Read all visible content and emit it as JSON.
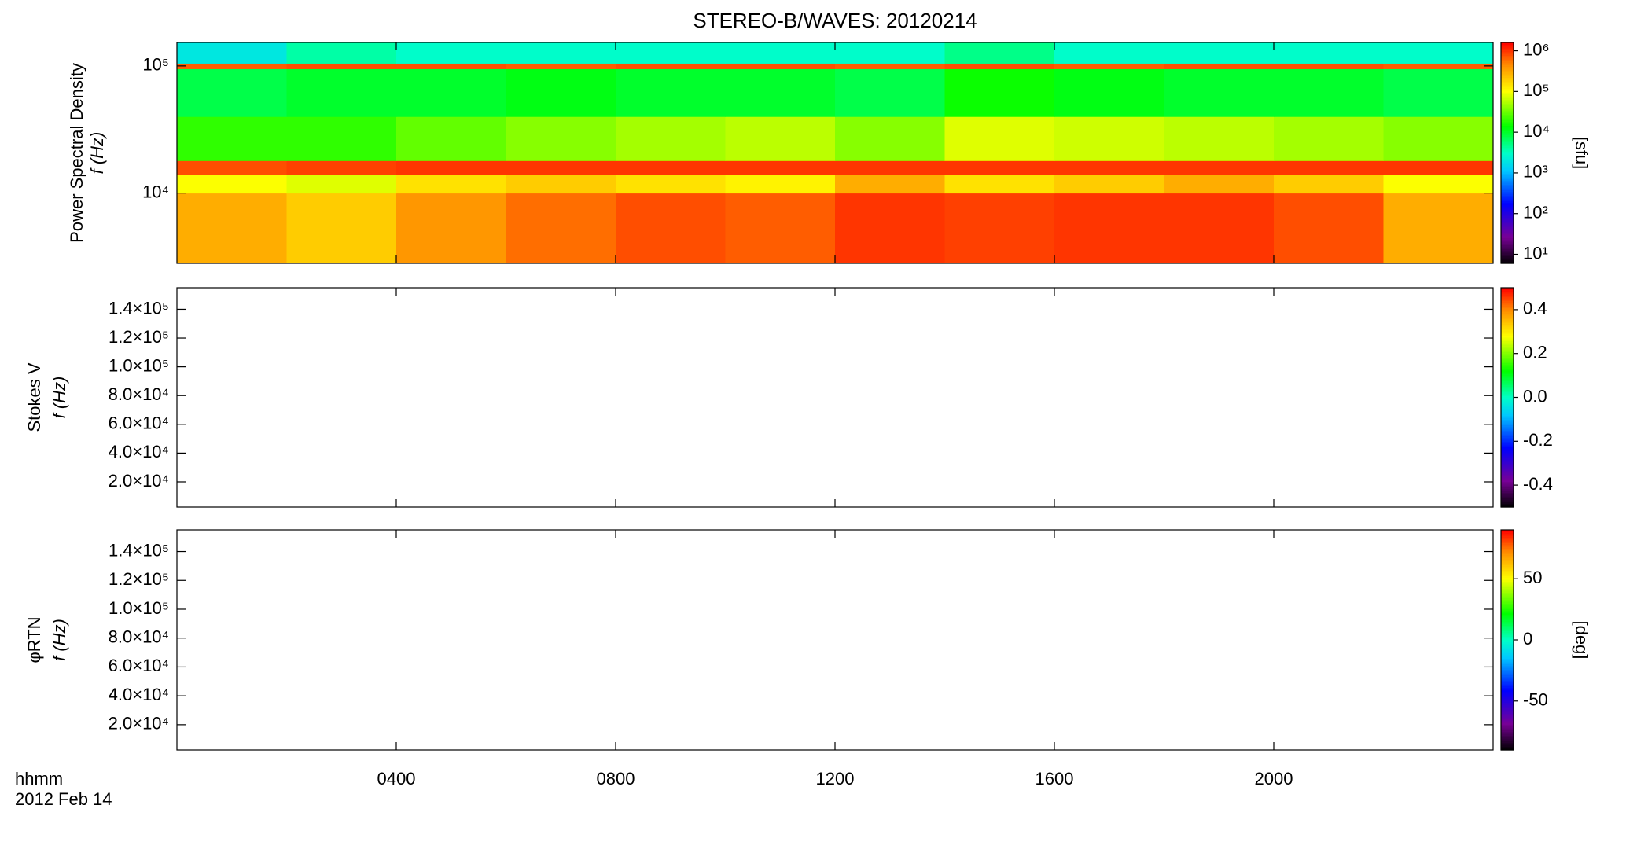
{
  "title": "STEREO-B/WAVES: 20120214",
  "footer": [
    "hhmm",
    "2012 Feb 14"
  ],
  "x_axis": {
    "xlim": [
      0,
      24
    ],
    "xticks": [
      {
        "value": 4,
        "label": "0400"
      },
      {
        "value": 8,
        "label": "0800"
      },
      {
        "value": 12,
        "label": "1200"
      },
      {
        "value": 16,
        "label": "1600"
      },
      {
        "value": 20,
        "label": "2000"
      }
    ]
  },
  "chart_data": [
    {
      "type": "heatmap",
      "ylabel": [
        "Power Spectral Density",
        "f (Hz)"
      ],
      "log_y": true,
      "ylim": [
        2800,
        153000
      ],
      "yticks": [
        {
          "value": 10000,
          "label": "10⁴"
        },
        {
          "value": 100000,
          "label": "10⁵"
        }
      ],
      "x_bins": [
        0,
        2,
        4,
        6,
        8,
        10,
        12,
        14,
        16,
        18,
        20,
        22,
        24
      ],
      "y_bins": [
        2800,
        10000,
        14000,
        18000,
        40000,
        95000,
        105000,
        153000
      ],
      "z": [
        [
          300000,
          200000,
          400000,
          600000,
          800000,
          700000,
          1000000,
          900000,
          1000000,
          1000000,
          800000,
          300000
        ],
        [
          100000,
          80000,
          150000,
          200000,
          150000,
          120000,
          300000,
          150000,
          200000,
          300000,
          200000,
          100000
        ],
        [
          800000,
          900000,
          1000000,
          1000000,
          1000000,
          1000000,
          1000000,
          1000000,
          1000000,
          1000000,
          1000000,
          1000000
        ],
        [
          20000,
          20000,
          30000,
          40000,
          50000,
          60000,
          40000,
          80000,
          70000,
          60000,
          50000,
          40000
        ],
        [
          8000,
          10000,
          10000,
          12000,
          10000,
          10000,
          8000,
          15000,
          12000,
          10000,
          10000,
          8000
        ],
        [
          700000,
          800000,
          800000,
          700000,
          800000,
          800000,
          700000,
          800000,
          700000,
          800000,
          800000,
          700000
        ],
        [
          2000,
          4000,
          3000,
          3000,
          3000,
          3000,
          3000,
          5000,
          3000,
          3000,
          3000,
          3000
        ]
      ],
      "colormap": "rainbow",
      "colorbar": {
        "log": true,
        "lim": [
          6,
          1600000
        ],
        "label": "[sfu]",
        "ticks": [
          {
            "value": 10,
            "label": "10¹"
          },
          {
            "value": 100,
            "label": "10²"
          },
          {
            "value": 1000,
            "label": "10³"
          },
          {
            "value": 10000,
            "label": "10⁴"
          },
          {
            "value": 100000,
            "label": "10⁵"
          },
          {
            "value": 1000000,
            "label": "10⁶"
          }
        ]
      }
    },
    {
      "type": "heatmap",
      "ylabel": [
        "Stokes V",
        "f (Hz)"
      ],
      "log_y": false,
      "ylim": [
        2500,
        155000
      ],
      "yticks": [
        {
          "value": 20000,
          "label": "2.0×10⁴"
        },
        {
          "value": 40000,
          "label": "4.0×10⁴"
        },
        {
          "value": 60000,
          "label": "6.0×10⁴"
        },
        {
          "value": 80000,
          "label": "8.0×10⁴"
        },
        {
          "value": 100000,
          "label": "1.0×10⁵"
        },
        {
          "value": 120000,
          "label": "1.2×10⁵"
        },
        {
          "value": 140000,
          "label": "1.4×10⁵"
        }
      ],
      "colormap": "rainbow",
      "colorbar": {
        "log": false,
        "lim": [
          -0.5,
          0.5
        ],
        "ticks": [
          -0.4,
          -0.2,
          {
            "value": 0,
            "label": "0.0"
          },
          0.2,
          0.4
        ]
      }
    },
    {
      "type": "heatmap",
      "ylabel": [
        "φRTN",
        "f (Hz)"
      ],
      "log_y": false,
      "ylim": [
        2500,
        155000
      ],
      "yticks": [
        {
          "value": 20000,
          "label": "2.0×10⁴"
        },
        {
          "value": 40000,
          "label": "4.0×10⁴"
        },
        {
          "value": 60000,
          "label": "6.0×10⁴"
        },
        {
          "value": 80000,
          "label": "8.0×10⁴"
        },
        {
          "value": 100000,
          "label": "1.0×10⁵"
        },
        {
          "value": 120000,
          "label": "1.2×10⁵"
        },
        {
          "value": 140000,
          "label": "1.4×10⁵"
        }
      ],
      "colormap": "rainbow",
      "colorbar": {
        "log": false,
        "lim": [
          -90,
          90
        ],
        "label": "[deg]",
        "ticks": [
          -50,
          0,
          50
        ]
      }
    }
  ]
}
